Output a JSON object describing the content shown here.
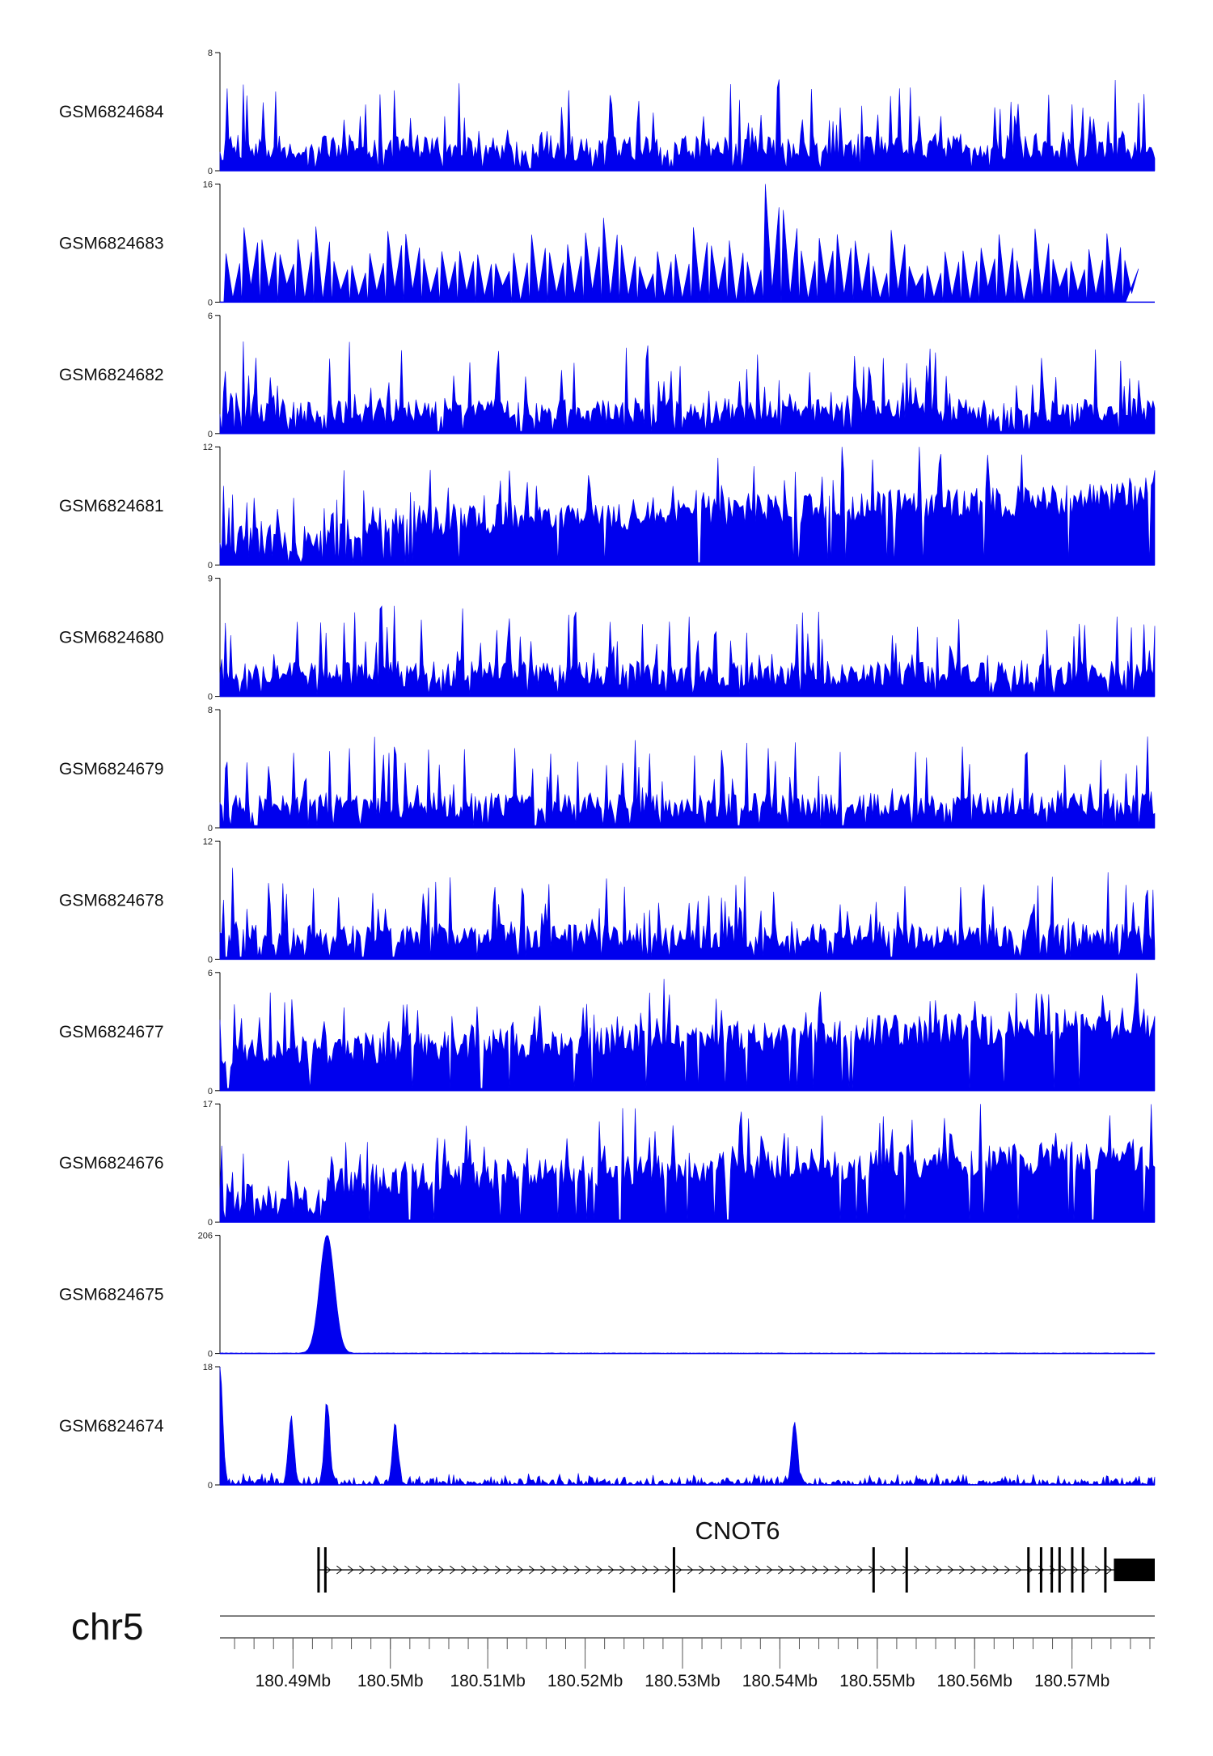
{
  "chart_data": {
    "type": "area",
    "colors": {
      "signal": "#0000ee",
      "axis": "#000000",
      "gene": "#000000",
      "ruler": "#555555"
    },
    "xlim": [
      180.4825,
      180.5785
    ],
    "tracks": [
      {
        "name": "GSM6824684",
        "ymax": 8,
        "ymin": 0,
        "profile": "dense_spiky"
      },
      {
        "name": "GSM6824683",
        "ymax": 16,
        "ymin": 0,
        "profile": "sparse_triangles"
      },
      {
        "name": "GSM6824682",
        "ymax": 6,
        "ymin": 0,
        "profile": "dense_spiky"
      },
      {
        "name": "GSM6824681",
        "ymax": 12,
        "ymin": 0,
        "profile": "dense_filled"
      },
      {
        "name": "GSM6824680",
        "ymax": 9,
        "ymin": 0,
        "profile": "dense_spiky"
      },
      {
        "name": "GSM6824679",
        "ymax": 8,
        "ymin": 0,
        "profile": "dense_spiky"
      },
      {
        "name": "GSM6824678",
        "ymax": 12,
        "ymin": 0,
        "profile": "dense_spiky"
      },
      {
        "name": "GSM6824677",
        "ymax": 6,
        "ymin": 0,
        "profile": "dense_filled"
      },
      {
        "name": "GSM6824676",
        "ymax": 17,
        "ymin": 0,
        "profile": "dense_filled"
      },
      {
        "name": "GSM6824675",
        "ymax": 206,
        "ymin": 0,
        "profile": "single_peak",
        "peaks": [
          {
            "x": 180.4935,
            "y": 206
          }
        ]
      },
      {
        "name": "GSM6824674",
        "ymax": 18,
        "ymin": 0,
        "profile": "low_with_peaks",
        "peaks": [
          {
            "x": 180.4825,
            "y": 18
          },
          {
            "x": 180.4898,
            "y": 10
          },
          {
            "x": 180.4935,
            "y": 12
          },
          {
            "x": 180.5005,
            "y": 8.5
          },
          {
            "x": 180.5415,
            "y": 9.5
          }
        ]
      }
    ],
    "gene": {
      "name": "CNOT6",
      "strand": "+",
      "start": 180.4925,
      "end": 180.5785,
      "exons": [
        {
          "start": 180.4925,
          "end": 180.4927
        },
        {
          "start": 180.4932,
          "end": 180.4934
        },
        {
          "start": 180.529,
          "end": 180.5292
        },
        {
          "start": 180.5495,
          "end": 180.5497
        },
        {
          "start": 180.5529,
          "end": 180.5531
        },
        {
          "start": 180.5654,
          "end": 180.5656
        },
        {
          "start": 180.5667,
          "end": 180.5669
        },
        {
          "start": 180.5678,
          "end": 180.568
        },
        {
          "start": 180.5686,
          "end": 180.5688
        },
        {
          "start": 180.5699,
          "end": 180.5701
        },
        {
          "start": 180.571,
          "end": 180.5712
        },
        {
          "start": 180.5733,
          "end": 180.5735
        },
        {
          "start": 180.5743,
          "end": 180.5785
        }
      ]
    },
    "chromosome": "chr5",
    "xticks": [
      {
        "value": 180.49,
        "label": "180.49Mb"
      },
      {
        "value": 180.5,
        "label": "180.5Mb"
      },
      {
        "value": 180.51,
        "label": "180.51Mb"
      },
      {
        "value": 180.52,
        "label": "180.52Mb"
      },
      {
        "value": 180.53,
        "label": "180.53Mb"
      },
      {
        "value": 180.54,
        "label": "180.54Mb"
      },
      {
        "value": 180.55,
        "label": "180.55Mb"
      },
      {
        "value": 180.56,
        "label": "180.56Mb"
      },
      {
        "value": 180.57,
        "label": "180.57Mb"
      }
    ],
    "minor_tick_step": 0.002
  }
}
